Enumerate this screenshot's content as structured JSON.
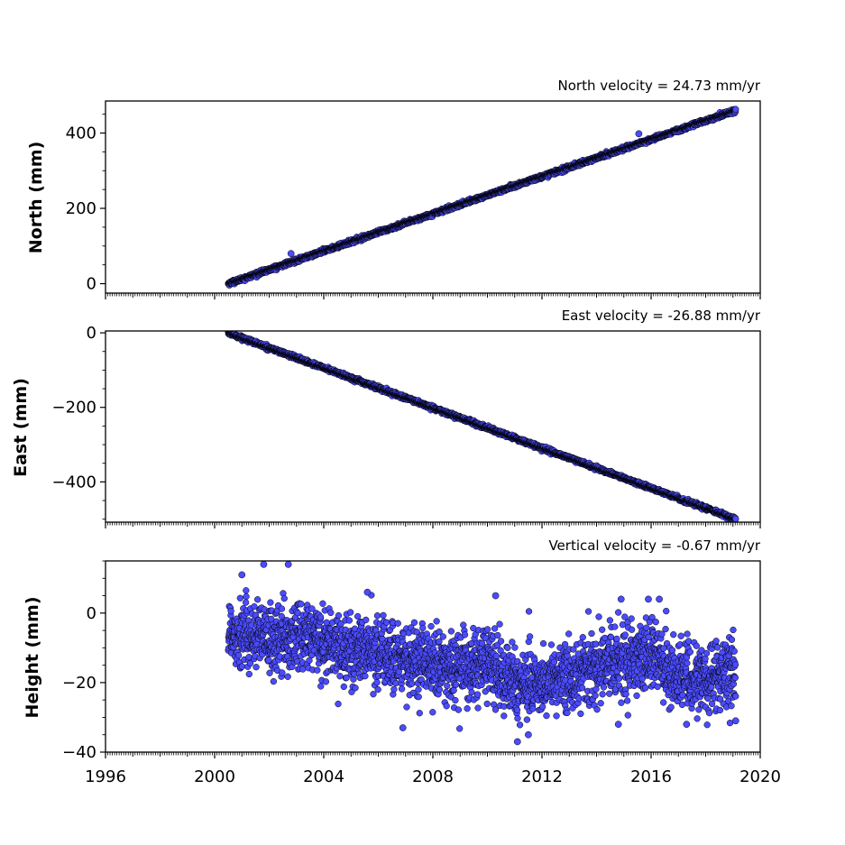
{
  "chart_data": [
    {
      "type": "scatter",
      "id": "north",
      "title": "North velocity = 24.73 mm/yr",
      "ylabel": "North (mm)",
      "xlabel": "",
      "xlim": [
        1996,
        2020
      ],
      "ylim": [
        -25,
        485
      ],
      "yticks": [
        0,
        200,
        400
      ],
      "ytick_labels": [
        "0",
        "200",
        "400"
      ],
      "xticks": [],
      "xtick_labels": [],
      "series": [
        {
          "x_range": [
            2000.5,
            2019.1
          ],
          "velocity_mm_per_yr": 24.73,
          "value_at_start": 0,
          "scatter_sd_mm": 2.5,
          "outliers": [
            [
              2015.55,
              398
            ],
            [
              2002.8,
              80
            ]
          ],
          "points": [
            [
              2000.5,
              0
            ],
            [
              2004.0,
              86
            ],
            [
              2008.0,
              185
            ],
            [
              2012.0,
              284
            ],
            [
              2016.0,
              383
            ],
            [
              2019.1,
              460
            ]
          ]
        }
      ],
      "grid": false,
      "legend": "none",
      "colors": {
        "marker_fill": "#4b4bff",
        "marker_edge": "#000000"
      }
    },
    {
      "type": "scatter",
      "id": "east",
      "title": "East velocity = -26.88 mm/yr",
      "ylabel": "East (mm)",
      "xlabel": "",
      "xlim": [
        1996,
        2020
      ],
      "ylim": [
        -508,
        5
      ],
      "yticks": [
        -400,
        -200,
        0
      ],
      "ytick_labels": [
        "−400",
        "−200",
        "0"
      ],
      "xticks": [],
      "xtick_labels": [],
      "series": [
        {
          "x_range": [
            2000.5,
            2019.1
          ],
          "velocity_mm_per_yr": -26.88,
          "value_at_start": 0,
          "scatter_sd_mm": 2.5,
          "outliers": [],
          "points": [
            [
              2000.5,
              0
            ],
            [
              2004.0,
              -94
            ],
            [
              2008.0,
              -202
            ],
            [
              2012.0,
              -309
            ],
            [
              2016.0,
              -417
            ],
            [
              2019.1,
              -500
            ]
          ]
        }
      ],
      "grid": false,
      "legend": "none",
      "colors": {
        "marker_fill": "#4b4bff",
        "marker_edge": "#000000"
      }
    },
    {
      "type": "scatter",
      "id": "height",
      "title": "Vertical velocity = -0.67 mm/yr",
      "ylabel": "Height (mm)",
      "xlabel": "",
      "xlim": [
        1996,
        2020
      ],
      "ylim": [
        -40,
        15
      ],
      "yticks": [
        -40,
        -20,
        0
      ],
      "ytick_labels": [
        "−40",
        "−20",
        "0"
      ],
      "xticks": [
        1996,
        2000,
        2004,
        2008,
        2012,
        2016,
        2020
      ],
      "xtick_labels": [
        "1996",
        "2000",
        "2004",
        "2008",
        "2012",
        "2016",
        "2020"
      ],
      "series": [
        {
          "x_range": [
            2000.5,
            2019.1
          ],
          "velocity_mm_per_yr": -0.67,
          "mean_profile": [
            [
              2000.5,
              -5
            ],
            [
              2002.0,
              -8
            ],
            [
              2003.0,
              -7
            ],
            [
              2004.0,
              -8
            ],
            [
              2005.0,
              -11
            ],
            [
              2006.0,
              -11
            ],
            [
              2007.0,
              -14
            ],
            [
              2008.0,
              -15
            ],
            [
              2009.0,
              -16
            ],
            [
              2010.0,
              -15
            ],
            [
              2011.0,
              -20
            ],
            [
              2012.0,
              -20
            ],
            [
              2013.0,
              -18
            ],
            [
              2014.0,
              -15
            ],
            [
              2015.0,
              -14
            ],
            [
              2016.0,
              -12
            ],
            [
              2017.0,
              -18
            ],
            [
              2018.0,
              -19
            ],
            [
              2019.1,
              -16
            ]
          ],
          "scatter_sd_mm": 5,
          "outliers": [
            [
              2001.0,
              11
            ],
            [
              2001.8,
              14
            ],
            [
              2002.7,
              14
            ],
            [
              2005.6,
              6
            ],
            [
              2010.3,
              5
            ],
            [
              2014.9,
              4
            ],
            [
              2015.9,
              4
            ],
            [
              2016.3,
              4
            ],
            [
              2006.9,
              -33
            ],
            [
              2011.1,
              -37
            ],
            [
              2011.5,
              -35
            ],
            [
              2014.8,
              -32
            ],
            [
              2017.3,
              -32
            ],
            [
              2019.1,
              -31
            ]
          ],
          "points": [
            [
              2001.0,
              -6
            ],
            [
              2004.0,
              -8
            ],
            [
              2008.0,
              -15
            ],
            [
              2012.0,
              -20
            ],
            [
              2016.0,
              -12
            ],
            [
              2019.1,
              -16
            ]
          ]
        }
      ],
      "grid": false,
      "legend": "none",
      "colors": {
        "marker_fill": "#4b4bff",
        "marker_edge": "#000000"
      }
    }
  ]
}
